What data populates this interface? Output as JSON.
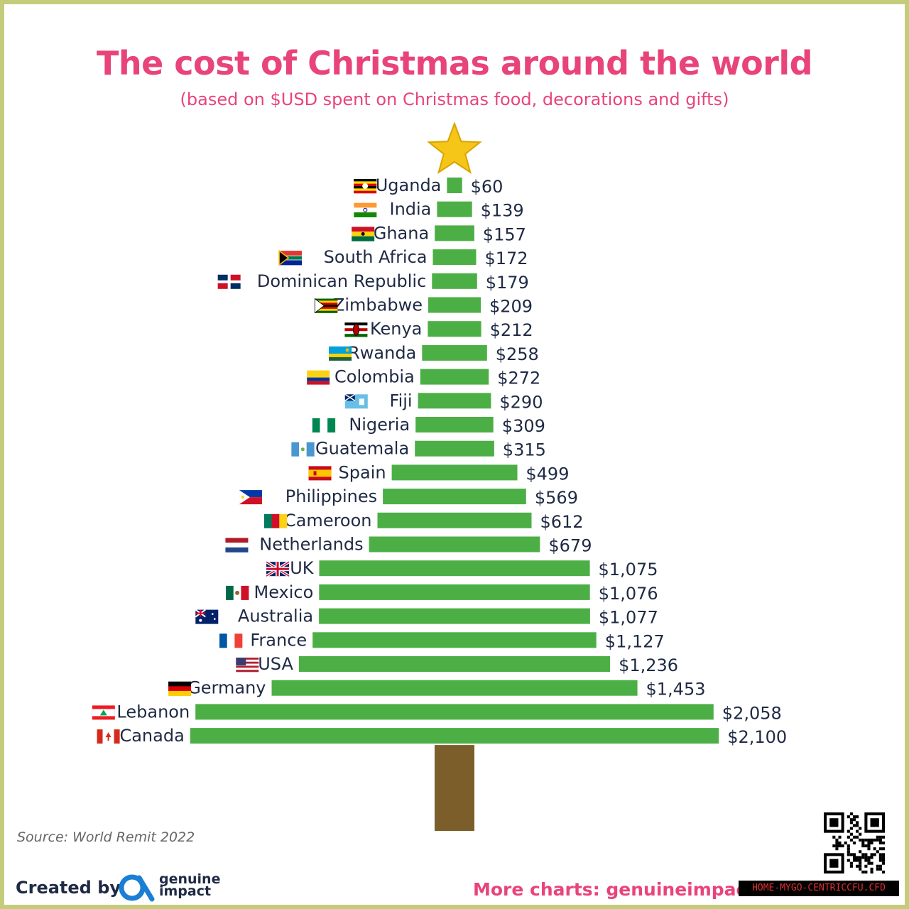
{
  "title": "The cost of Christmas around the world",
  "subtitle": "(based on $USD spent on Christmas food, decorations and gifts)",
  "source": "Source: World Remit 2022",
  "footer": {
    "created_by": "Created by",
    "logo_line1": "genuine",
    "logo_line2": "impact",
    "more_charts": "More charts: genuineimpact.",
    "watermark": "HOME-MYGO-CENTRICCFU.CFD"
  },
  "colors": {
    "bar": "#4caf45",
    "trunk": "#7b5e2a",
    "star": "#f5c518",
    "title": "#e8447a"
  },
  "chart_data": {
    "type": "bar",
    "orientation": "horizontal-centered",
    "title": "The cost of Christmas around the world",
    "subtitle": "(based on $USD spent on Christmas food, decorations and gifts)",
    "unit": "USD",
    "categories": [
      "Uganda",
      "India",
      "Ghana",
      "South Africa",
      "Dominican Republic",
      "Zimbabwe",
      "Kenya",
      "Rwanda",
      "Colombia",
      "Fiji",
      "Nigeria",
      "Guatemala",
      "Spain",
      "Philippines",
      "Cameroon",
      "Netherlands",
      "UK",
      "Mexico",
      "Australia",
      "France",
      "USA",
      "Germany",
      "Lebanon",
      "Canada"
    ],
    "values": [
      60,
      139,
      157,
      172,
      179,
      209,
      212,
      258,
      272,
      290,
      309,
      315,
      499,
      569,
      612,
      679,
      1075,
      1076,
      1077,
      1127,
      1236,
      1453,
      2058,
      2100
    ],
    "value_labels": [
      "$60",
      "$139",
      "$157",
      "$172",
      "$179",
      "$209",
      "$212",
      "$258",
      "$272",
      "$290",
      "$309",
      "$315",
      "$499",
      "$569",
      "$612",
      "$679",
      "$1,075",
      "$1,076",
      "$1,077",
      "$1,127",
      "$1,236",
      "$1,453",
      "$2,058",
      "$2,100"
    ],
    "flag_icons": [
      "uganda-flag-icon",
      "india-flag-icon",
      "ghana-flag-icon",
      "south-africa-flag-icon",
      "dominican-republic-flag-icon",
      "zimbabwe-flag-icon",
      "kenya-flag-icon",
      "rwanda-flag-icon",
      "colombia-flag-icon",
      "fiji-flag-icon",
      "nigeria-flag-icon",
      "guatemala-flag-icon",
      "spain-flag-icon",
      "philippines-flag-icon",
      "cameroon-flag-icon",
      "netherlands-flag-icon",
      "uk-flag-icon",
      "mexico-flag-icon",
      "australia-flag-icon",
      "france-flag-icon",
      "usa-flag-icon",
      "germany-flag-icon",
      "lebanon-flag-icon",
      "canada-flag-icon"
    ],
    "grid": false,
    "legend": "none",
    "decorations": [
      "star-top",
      "tree-trunk"
    ]
  }
}
